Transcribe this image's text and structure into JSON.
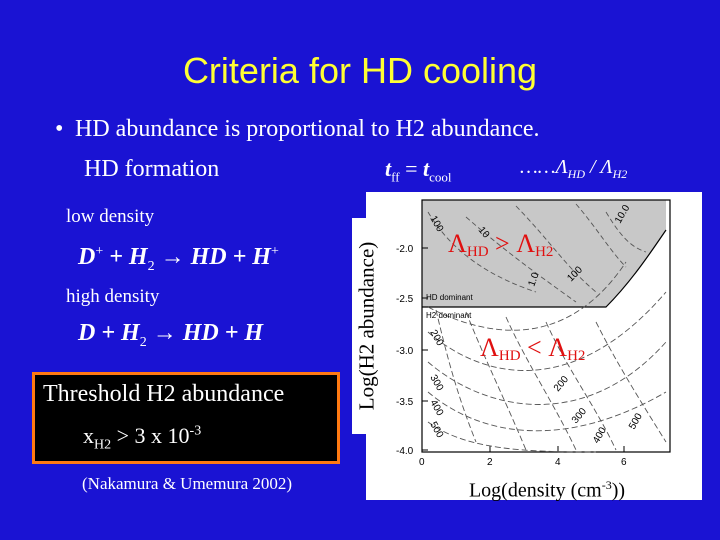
{
  "title": "Criteria for HD cooling",
  "bullet": "HD abundance is proportional to H2 abundance.",
  "hd_formation": "HD formation",
  "eq_tff": "t",
  "eq_tff_sub": "ff",
  "eq_equals": " = ",
  "eq_tcool": "t",
  "eq_tcool_sub": "cool",
  "eq_ratio_prefix": "……Λ",
  "eq_ratio_sub1": "HD",
  "eq_ratio_mid": " / Λ",
  "eq_ratio_sub2": "H2",
  "low_density": "low density",
  "high_density": "high density",
  "rx1": {
    "a": "D",
    "a_sup": "+",
    "b": " + H",
    "b_sub": "2",
    "c": " → HD + H",
    "c_sup": "+"
  },
  "rx2": {
    "a": "D",
    "b": "  + H",
    "b_sub": "2",
    "c": " → HD + H"
  },
  "threshold_line1": "Threshold H2 abundance",
  "threshold_x": "x",
  "threshold_x_sub": "H2",
  "threshold_val": " > 3 x 10",
  "threshold_exp": "-3",
  "citation": "(Nakamura & Umemura 2002)",
  "plot": {
    "ylabel": "Log(H2 abundance)",
    "xlabel_pre": "Log(density (cm",
    "xlabel_sup": "-3",
    "xlabel_post": "))",
    "xticks": [
      "0",
      "2",
      "4",
      "6"
    ],
    "yticks": [
      "-2.0",
      "-2.5",
      "-3.0",
      "-3.5",
      "-4.0"
    ],
    "region_hd_label": "HD dominant",
    "region_h2_label": "H2 dominant",
    "lambda_gt": {
      "a": "Λ",
      "a_sub": "HD",
      "op": " > ",
      "b": "Λ",
      "b_sub": "H2"
    },
    "lambda_lt": {
      "a": "Λ",
      "a_sub": "HD",
      "op": " < ",
      "b": "Λ",
      "b_sub": "H2"
    },
    "contour_labels_top": [
      "100",
      "10",
      "1.0",
      "10.0",
      "100"
    ],
    "contour_labels_bottom": [
      "200",
      "300",
      "400",
      "500",
      "200",
      "300",
      "400",
      "500"
    ],
    "shade_color": "#c8c8c8",
    "lambda_color": "#e01010"
  },
  "colors": {
    "background": "#1a13d3",
    "title": "#ffff33",
    "box_border": "#ff7a12"
  }
}
